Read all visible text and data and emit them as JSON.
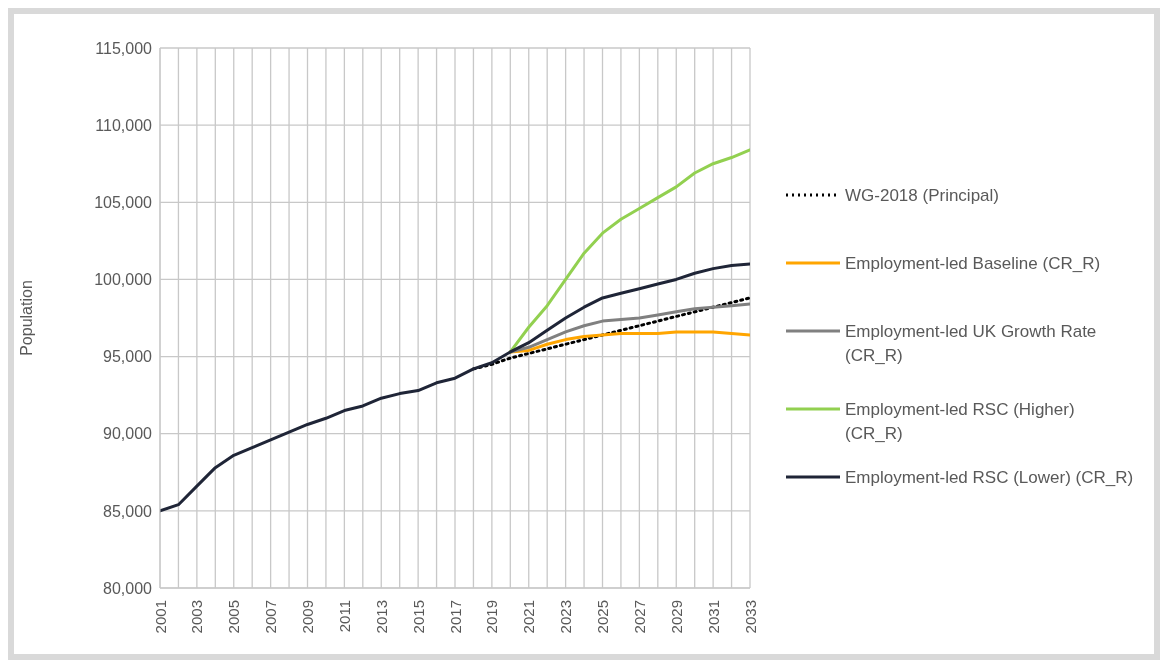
{
  "chart_data": {
    "type": "line",
    "ylabel": "Population",
    "x": [
      2001,
      2002,
      2003,
      2004,
      2005,
      2006,
      2007,
      2008,
      2009,
      2010,
      2011,
      2012,
      2013,
      2014,
      2015,
      2016,
      2017,
      2018,
      2019,
      2020,
      2021,
      2022,
      2023,
      2024,
      2025,
      2026,
      2027,
      2028,
      2029,
      2030,
      2031,
      2032,
      2033
    ],
    "xlim": [
      2001,
      2033
    ],
    "xticks": [
      2001,
      {
        "value": 2002,
        "label": null
      },
      2003,
      {
        "value": 2004,
        "label": null
      },
      2005,
      {
        "value": 2006,
        "label": null
      },
      2007,
      {
        "value": 2008,
        "label": null
      },
      2009,
      {
        "value": 2010,
        "label": null
      },
      2011,
      {
        "value": 2012,
        "label": null
      },
      2013,
      {
        "value": 2014,
        "label": null
      },
      2015,
      {
        "value": 2016,
        "label": null
      },
      2017,
      {
        "value": 2018,
        "label": null
      },
      2019,
      {
        "value": 2020,
        "label": null
      },
      2021,
      {
        "value": 2022,
        "label": null
      },
      2023,
      {
        "value": 2024,
        "label": null
      },
      2025,
      {
        "value": 2026,
        "label": null
      },
      2027,
      {
        "value": 2028,
        "label": null
      },
      2029,
      {
        "value": 2030,
        "label": null
      },
      2031,
      {
        "value": 2032,
        "label": null
      },
      2033
    ],
    "ylim": [
      80000,
      115000
    ],
    "yticks": [
      {
        "value": 80000,
        "label": "80,000"
      },
      {
        "value": 85000,
        "label": "85,000"
      },
      {
        "value": 90000,
        "label": "90,000"
      },
      {
        "value": 95000,
        "label": "95,000"
      },
      {
        "value": 100000,
        "label": "100,000"
      },
      {
        "value": 105000,
        "label": "105,000"
      },
      {
        "value": 110000,
        "label": "110,000"
      },
      {
        "value": 115000,
        "label": "115,000"
      }
    ],
    "grid": true,
    "legend": "right",
    "marker": "none",
    "series": [
      {
        "name": "WG-2018 (Principal)",
        "color": "#000000",
        "line_style": "dotted",
        "values": [
          null,
          null,
          null,
          null,
          null,
          null,
          null,
          null,
          null,
          null,
          null,
          null,
          null,
          null,
          null,
          null,
          null,
          94200,
          94500,
          94900,
          95200,
          95500,
          95800,
          96100,
          96400,
          96700,
          97000,
          97300,
          97600,
          97900,
          98200,
          98500,
          98800
        ]
      },
      {
        "name": "Employment-led Baseline (CR_R)",
        "color": "#ffa500",
        "values": [
          null,
          null,
          null,
          null,
          null,
          null,
          null,
          null,
          null,
          null,
          null,
          null,
          null,
          null,
          null,
          null,
          null,
          null,
          null,
          95300,
          95400,
          95800,
          96100,
          96300,
          96400,
          96500,
          96500,
          96500,
          96600,
          96600,
          96600,
          96500,
          96400
        ]
      },
      {
        "name": "Employment-led UK Growth Rate (CR_R)",
        "color": "#808080",
        "values": [
          null,
          null,
          null,
          null,
          null,
          null,
          null,
          null,
          null,
          null,
          null,
          null,
          null,
          null,
          null,
          null,
          null,
          null,
          null,
          95300,
          95600,
          96100,
          96600,
          97000,
          97300,
          97400,
          97500,
          97700,
          97900,
          98100,
          98200,
          98300,
          98400
        ]
      },
      {
        "name": "Employment-led RSC (Higher) (CR_R)",
        "color": "#92d050",
        "values": [
          null,
          null,
          null,
          null,
          null,
          null,
          null,
          null,
          null,
          null,
          null,
          null,
          null,
          null,
          null,
          null,
          null,
          null,
          null,
          95300,
          96900,
          98300,
          100000,
          101700,
          103000,
          103900,
          104600,
          105300,
          106000,
          106900,
          107500,
          107900,
          108400
        ]
      },
      {
        "name": "Employment-led RSC (Lower) (CR_R)",
        "color": "#1f2537",
        "values": [
          85000,
          85400,
          86600,
          87800,
          88600,
          89100,
          89600,
          90100,
          90600,
          91000,
          91500,
          91800,
          92300,
          92600,
          92800,
          93300,
          93600,
          94200,
          94600,
          95300,
          95900,
          96700,
          97500,
          98200,
          98800,
          99100,
          99400,
          99700,
          100000,
          100400,
          100700,
          100900,
          101000
        ]
      }
    ]
  }
}
